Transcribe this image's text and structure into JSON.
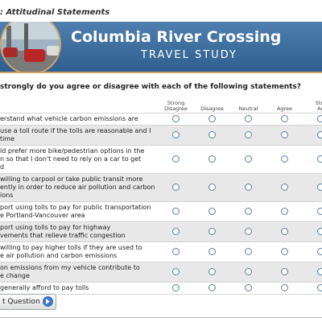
{
  "header": {
    "section": ": Attitudinal Statements",
    "title": "Columbia River Crossing",
    "subtitle": "TRAVEL STUDY"
  },
  "question": "strongly do you agree or disagree with each of the following statements?",
  "columns": [
    [
      "Strong",
      "Disagree"
    ],
    [
      "Disagree"
    ],
    [
      "Neutral"
    ],
    [
      "Agree"
    ],
    [
      "Stro",
      "Ag"
    ]
  ],
  "rows": [
    [
      "erstand what vehicle carbon emissions are"
    ],
    [
      "use a toll route if the tolls are reasonable and I",
      "time"
    ],
    [
      "ld prefer more bike/pedestrian options in the",
      "n so that I don't need to rely on a car to get",
      "d"
    ],
    [
      "willing to carpool or take public transit more",
      "ently in order to reduce air pollution and carbon",
      "ions"
    ],
    [
      "port using tolls to pay for public transportation",
      "e Portland-Vancouver area"
    ],
    [
      "port using tolls to pay for highway",
      "vements that relieve traffic congestion"
    ],
    [
      "willing to pay higher tolls if they are used to",
      "e air pollution and carbon emissions"
    ],
    [
      "on emissions from my vehicle contribute to",
      "e change"
    ],
    [
      "generally afford to pay tolls"
    ]
  ],
  "button": "t Question"
}
